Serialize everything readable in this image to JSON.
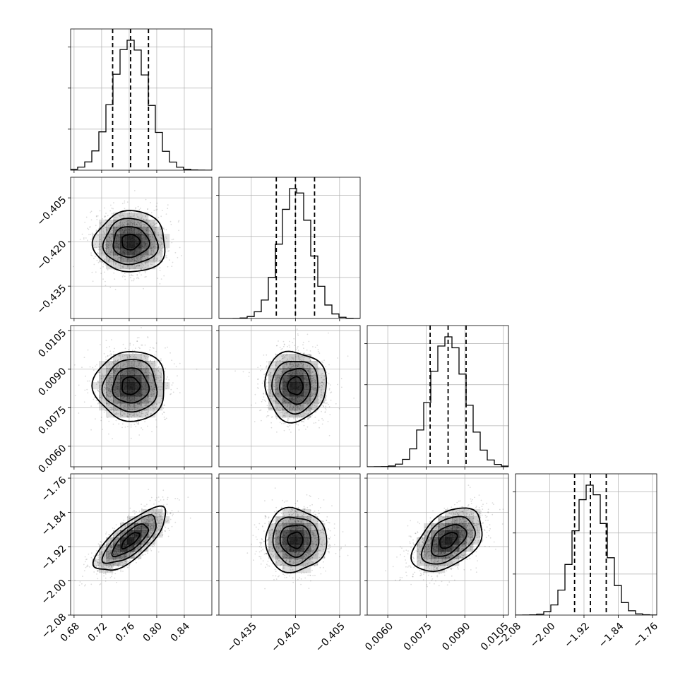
{
  "chart_data": {
    "type": "corner",
    "title": "",
    "parameters": [
      {
        "index": 0,
        "mean": 0.762,
        "std": 0.026,
        "range": [
          0.675,
          0.88
        ],
        "ticks": [
          0.68,
          0.72,
          0.76,
          0.8,
          0.84
        ],
        "tick_labels": [
          "0.68",
          "0.72",
          "0.76",
          "0.80",
          "0.84"
        ],
        "quantiles": [
          0.736,
          0.762,
          0.788
        ],
        "label": ""
      },
      {
        "index": 1,
        "mean": -0.42,
        "std": 0.0052,
        "range": [
          -0.446,
          -0.398
        ],
        "ticks": [
          -0.435,
          -0.42,
          -0.405
        ],
        "tick_labels": [
          "−0.435",
          "−0.420",
          "−0.405"
        ],
        "quantiles": [
          -0.4265,
          -0.42,
          -0.4135
        ],
        "label": ""
      },
      {
        "index": 2,
        "mean": 0.00835,
        "std": 0.00068,
        "range": [
          0.0052,
          0.0107
        ],
        "ticks": [
          0.006,
          0.0075,
          0.009,
          0.0105
        ],
        "tick_labels": [
          "0.0060",
          "0.0075",
          "0.0090",
          "0.0105"
        ],
        "quantiles": [
          0.00765,
          0.00835,
          0.00905
        ],
        "label": ""
      },
      {
        "index": 3,
        "mean": -1.905,
        "std": 0.037,
        "range": [
          -2.08,
          -1.75
        ],
        "ticks": [
          -2.08,
          -2.0,
          -1.92,
          -1.84,
          -1.76
        ],
        "tick_labels": [
          "−2.08",
          "−2.00",
          "−1.92",
          "−1.84",
          "−1.76"
        ],
        "quantiles": [
          -1.942,
          -1.905,
          -1.868
        ],
        "label": ""
      }
    ],
    "correlations": {
      "0-3": 0.75,
      "2-3": 0.45,
      "0-1": 0.0,
      "0-2": 0.0,
      "1-2": 0.0,
      "1-3": 0.0
    },
    "histogram_bins": 20,
    "contour_levels_sigma": [
      0.5,
      1.0,
      1.5,
      2.0
    ],
    "grid": true,
    "histogram_y_ticks": 3
  }
}
